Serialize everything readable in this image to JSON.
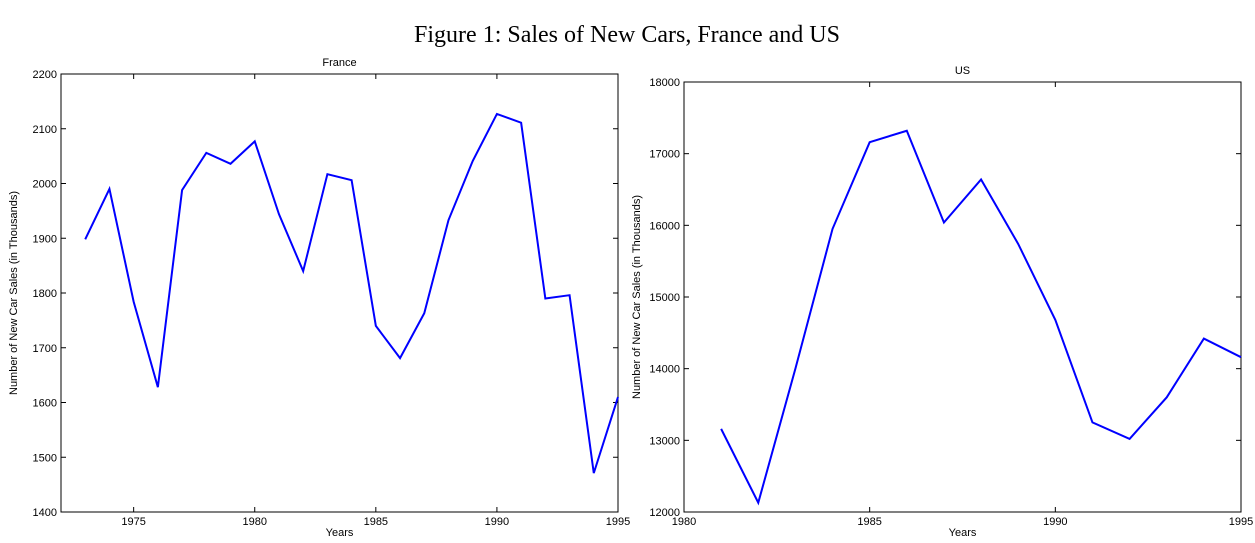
{
  "title": "Figure 1: Sales of New Cars, France and US",
  "chart_data": [
    {
      "type": "line",
      "title": "France",
      "x_label": "Years",
      "y_label": "Number of New Car Sales (in Thousands)",
      "x": [
        1973,
        1974,
        1975,
        1976,
        1977,
        1978,
        1979,
        1980,
        1981,
        1982,
        1983,
        1984,
        1985,
        1986,
        1987,
        1988,
        1989,
        1990,
        1991,
        1992,
        1993,
        1994,
        1995
      ],
      "series": [
        {
          "name": "France",
          "color": "#0000ff",
          "values": [
            1898,
            1990,
            1784,
            1628,
            1988,
            2056,
            2036,
            2077,
            1944,
            1840,
            2017,
            2006,
            1740,
            1681,
            1763,
            1933,
            2041,
            2127,
            2111,
            1790,
            1796,
            1471,
            1610
          ]
        }
      ],
      "xlim": [
        1972,
        1995
      ],
      "xticks": [
        1975,
        1980,
        1985,
        1990,
        1995
      ],
      "ylim": [
        1400,
        2200
      ],
      "yticks": [
        1400,
        1500,
        1600,
        1700,
        1800,
        1900,
        2000,
        2100,
        2200
      ]
    },
    {
      "type": "line",
      "title": "US",
      "x_label": "Years",
      "y_label": "Number of New Car Sales (in Thousands)",
      "x": [
        1981,
        1982,
        1983,
        1984,
        1985,
        1986,
        1987,
        1988,
        1989,
        1990,
        1991,
        1992,
        1993,
        1994,
        1995
      ],
      "series": [
        {
          "name": "US",
          "color": "#0000ff",
          "values": [
            13160,
            12130,
            14000,
            15950,
            17160,
            17320,
            16040,
            16640,
            15740,
            14680,
            13250,
            13020,
            13600,
            14420,
            14160
          ]
        }
      ],
      "xlim": [
        1980,
        1995
      ],
      "xticks": [
        1980,
        1985,
        1990,
        1995
      ],
      "ylim": [
        12000,
        18000
      ],
      "yticks": [
        12000,
        13000,
        14000,
        15000,
        16000,
        17000,
        18000
      ]
    }
  ]
}
